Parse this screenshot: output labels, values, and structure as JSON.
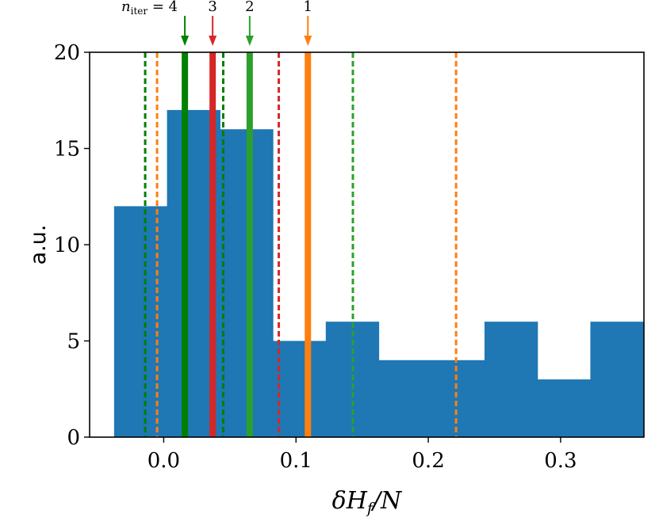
{
  "chart_data": {
    "type": "bar",
    "xlabel": "δH_f/N",
    "ylabel": "a.u.",
    "xlim": [
      -0.056,
      0.363
    ],
    "ylim": [
      0,
      20
    ],
    "xticks": [
      {
        "value": 0.0,
        "label": "0.0"
      },
      {
        "value": 0.1,
        "label": "0.1"
      },
      {
        "value": 0.2,
        "label": "0.2"
      },
      {
        "value": 0.3,
        "label": "0.3"
      }
    ],
    "yticks": [
      {
        "value": 0,
        "label": "0"
      },
      {
        "value": 5,
        "label": "5"
      },
      {
        "value": 10,
        "label": "10"
      },
      {
        "value": 15,
        "label": "15"
      },
      {
        "value": 20,
        "label": "20"
      }
    ],
    "bar_color": "#1f77b4",
    "bins": [
      {
        "x0": -0.0375,
        "x1": 0.0025,
        "value": 12
      },
      {
        "x0": 0.0025,
        "x1": 0.0425,
        "value": 17
      },
      {
        "x0": 0.0425,
        "x1": 0.0825,
        "value": 16
      },
      {
        "x0": 0.0825,
        "x1": 0.1225,
        "value": 5
      },
      {
        "x0": 0.1225,
        "x1": 0.1625,
        "value": 6
      },
      {
        "x0": 0.1625,
        "x1": 0.2025,
        "value": 4
      },
      {
        "x0": 0.2025,
        "x1": 0.2425,
        "value": 4
      },
      {
        "x0": 0.2425,
        "x1": 0.2825,
        "value": 6
      },
      {
        "x0": 0.2825,
        "x1": 0.3225,
        "value": 3
      },
      {
        "x0": 0.3225,
        "x1": 0.3625,
        "value": 6
      }
    ],
    "iterations": [
      {
        "label": "n_iter = 4",
        "color": "#008000",
        "mean": 0.016,
        "lower": -0.014,
        "upper": 0.045
      },
      {
        "label": "3",
        "color": "#d62728",
        "mean": 0.037,
        "lower": null,
        "upper": 0.087
      },
      {
        "label": "2",
        "color": "#2ca02c",
        "mean": 0.065,
        "lower": null,
        "upper": 0.143
      },
      {
        "label": "1",
        "color": "#ff7f0e",
        "mean": 0.109,
        "lower": -0.005,
        "upper": 0.221
      }
    ]
  }
}
